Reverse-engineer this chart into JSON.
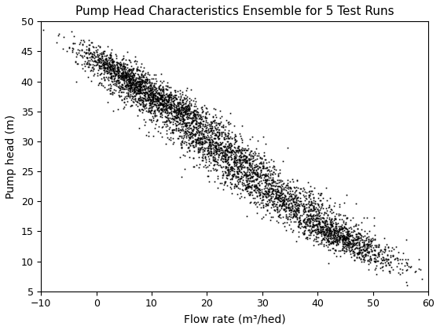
{
  "title": "Pump Head Characteristics Ensemble for 5 Test Runs",
  "xlabel": "Flow rate (m³/hed)",
  "ylabel": "Pump head (m)",
  "xlim": [
    -10,
    60
  ],
  "ylim": [
    5,
    50
  ],
  "xticks": [
    -10,
    0,
    10,
    20,
    30,
    40,
    50,
    60
  ],
  "yticks": [
    5,
    10,
    15,
    20,
    25,
    30,
    35,
    40,
    45,
    50
  ],
  "n_runs": 5,
  "run_centers_x": [
    5,
    13,
    22,
    33,
    44
  ],
  "run_centers_y": [
    41,
    36,
    29,
    21,
    14
  ],
  "run_spreads_x": [
    4.5,
    5.5,
    6.0,
    6.5,
    5.5
  ],
  "run_spreads_y": [
    2.5,
    2.5,
    3.0,
    3.0,
    2.5
  ],
  "corr_strength": 0.85,
  "n_points_per_run": 1000,
  "marker": "s",
  "markersize": 1.2,
  "color": "black",
  "seed": 42,
  "background_color": "#ffffff",
  "title_fontsize": 11,
  "label_fontsize": 10,
  "figsize": [
    5.6,
    4.2
  ],
  "dpi": 100
}
